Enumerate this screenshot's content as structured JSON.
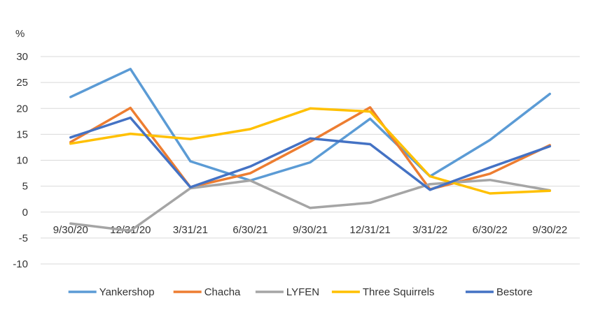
{
  "chart_data": {
    "type": "line",
    "unit": "%",
    "categories": [
      "9/30/20",
      "12/31/20",
      "3/31/21",
      "6/30/21",
      "9/30/21",
      "12/31/21",
      "3/31/22",
      "6/30/22",
      "9/30/22"
    ],
    "y_ticks": [
      30,
      25,
      20,
      15,
      10,
      5,
      0,
      -5,
      -10
    ],
    "ylim": [
      -10,
      30
    ],
    "grid": true,
    "legend_position": "bottom",
    "series": [
      {
        "name": "Yankershop",
        "color": "#5b9bd5",
        "values": [
          22.2,
          27.6,
          9.8,
          6.1,
          9.6,
          18.0,
          6.9,
          13.9,
          22.8
        ]
      },
      {
        "name": "Chacha",
        "color": "#ed7d31",
        "values": [
          13.5,
          20.1,
          4.8,
          7.5,
          13.6,
          20.2,
          4.4,
          7.4,
          12.9
        ]
      },
      {
        "name": "LYFEN",
        "color": "#a5a5a5",
        "values": [
          -2.2,
          -3.6,
          4.6,
          6.1,
          0.8,
          1.8,
          5.4,
          6.2,
          4.2
        ]
      },
      {
        "name": "Three Squirrels",
        "color": "#ffc000",
        "values": [
          13.2,
          15.1,
          14.1,
          16.0,
          20.0,
          19.4,
          6.9,
          3.6,
          4.1
        ]
      },
      {
        "name": "Bestore",
        "color": "#4472c4",
        "values": [
          14.4,
          18.2,
          4.8,
          8.8,
          14.2,
          13.1,
          4.3,
          8.6,
          12.7
        ]
      }
    ]
  }
}
